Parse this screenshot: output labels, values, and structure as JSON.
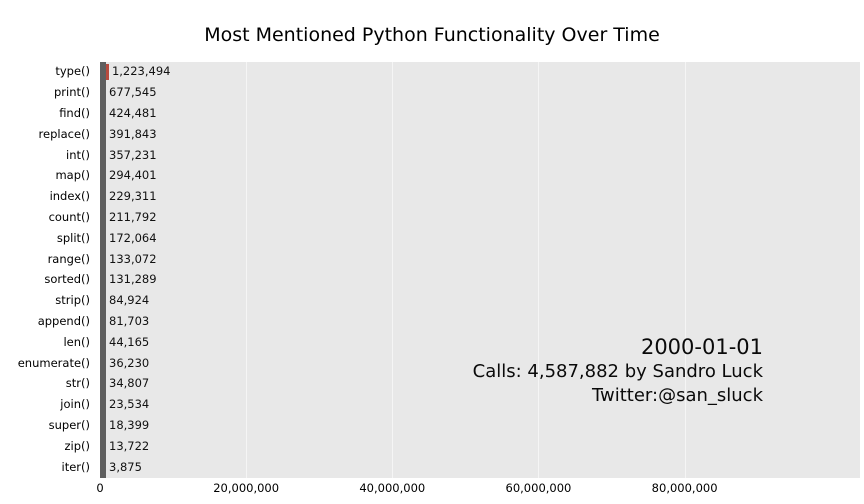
{
  "chart_data": {
    "type": "bar",
    "orientation": "horizontal",
    "title": "Most Mentioned Python Functionality Over Time",
    "categories": [
      "type()",
      "print()",
      "find()",
      "replace()",
      "int()",
      "map()",
      "index()",
      "count()",
      "split()",
      "range()",
      "sorted()",
      "strip()",
      "append()",
      "len()",
      "enumerate()",
      "str()",
      "join()",
      "super()",
      "zip()",
      "iter()"
    ],
    "values": [
      1223494,
      677545,
      424481,
      391843,
      357231,
      294401,
      229311,
      211792,
      172064,
      133072,
      131289,
      84924,
      81703,
      44165,
      36230,
      34807,
      23534,
      18399,
      13722,
      3875
    ],
    "value_labels": [
      "1,223,494",
      "677,545",
      "424,481",
      "391,843",
      "357,231",
      "294,401",
      "229,311",
      "211,792",
      "172,064",
      "133,072",
      "131,289",
      "84,924",
      "81,703",
      "44,165",
      "36,230",
      "34,807",
      "23,534",
      "18,399",
      "13,722",
      "3,875"
    ],
    "bar_colors": [
      "#b84b3e",
      "#4f7cba",
      "#46366d",
      "#cdd17e",
      "#6fae71",
      "#a2a0d0",
      "#7f7f7f",
      "#9c4f4f",
      "#8f8f8f",
      "#7a7a7a",
      "#8a8a8a",
      "#999999",
      "#777777",
      "#888888",
      "#9a9a9a",
      "#808080",
      "#8c8c8c",
      "#747474",
      "#969696",
      "#7e7e7e"
    ],
    "xlim": [
      0,
      104000000
    ],
    "xticks": [
      {
        "value": 0,
        "label": "0"
      },
      {
        "value": 20000000,
        "label": "20,000,000"
      },
      {
        "value": 40000000,
        "label": "40,000,000"
      },
      {
        "value": 60000000,
        "label": "60,000,000"
      },
      {
        "value": 80000000,
        "label": "80,000,000"
      }
    ],
    "grid": "white vertical lines at x ticks",
    "legend_position": "none",
    "plot_bg_color": "#e8e8e8",
    "axis_spine_color": "#5f5f5f",
    "annotation": {
      "date": "2000-01-01",
      "calls": "Calls: 4,587,882 by Sandro Luck",
      "twitter": "Twitter:@san_sluck"
    }
  }
}
